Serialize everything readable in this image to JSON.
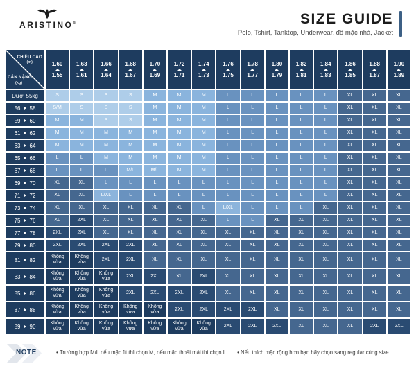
{
  "theme": {
    "navy": "#1e3c5f",
    "title": "#1c1c1c",
    "subtitle": "#4a4a4a",
    "note_text": "#3c3c3c",
    "accent_bar": "#3d6085",
    "chevron1": "#e2e6ec",
    "chevron2": "#eceff4",
    "cell_text": "#ffffff",
    "logo_color": "#1c1c1c"
  },
  "brand": {
    "name": "ARISTINO",
    "reg": "®"
  },
  "header": {
    "title": "SIZE GUIDE",
    "subtitle": "Polo, Tshirt, Tanktop, Underwear, đồ mặc nhà, Jacket"
  },
  "table": {
    "corner": {
      "top_label": "CHIỀU CAO",
      "top_unit": "(m)",
      "bottom_label": "CÂN NẶNG",
      "bottom_unit": "(kg)"
    },
    "height_columns": [
      {
        "max": "1.60",
        "min": "1.55"
      },
      {
        "max": "1.63",
        "min": "1.61"
      },
      {
        "max": "1.66",
        "min": "1.64"
      },
      {
        "max": "1.68",
        "min": "1.67"
      },
      {
        "max": "1.70",
        "min": "1.69"
      },
      {
        "max": "1.72",
        "min": "1.71"
      },
      {
        "max": "1.74",
        "min": "1.73"
      },
      {
        "max": "1.76",
        "min": "1.75"
      },
      {
        "max": "1.78",
        "min": "1.77"
      },
      {
        "max": "1.80",
        "min": "1.79"
      },
      {
        "max": "1.82",
        "min": "1.81"
      },
      {
        "max": "1.84",
        "min": "1.83"
      },
      {
        "max": "1.86",
        "min": "1.85"
      },
      {
        "max": "1.88",
        "min": "1.87"
      },
      {
        "max": "1.90",
        "min": "1.89"
      }
    ],
    "no_fit_label": "Không vừa",
    "size_colors": {
      "S": "#aecde9",
      "S/M": "#aecde9",
      "M": "#8ab4dd",
      "M/L": "#8ab4dd",
      "L": "#6992bf",
      "L/XL": "#8cb4dc",
      "XL": "#45678f",
      "2XL": "#2a4b72",
      "Không vừa": "#1e3c5f"
    },
    "rows": [
      {
        "label": "Dưới 55kg",
        "sizes": [
          "S",
          "S",
          "S",
          "S",
          "M",
          "M",
          "M",
          "L",
          "L",
          "L",
          "L",
          "L",
          "XL",
          "XL",
          "XL"
        ]
      },
      {
        "from": "56",
        "to": "58",
        "sizes": [
          "S/M",
          "S",
          "S",
          "S",
          "M",
          "M",
          "M",
          "L",
          "L",
          "L",
          "L",
          "L",
          "XL",
          "XL",
          "XL"
        ]
      },
      {
        "from": "59",
        "to": "60",
        "sizes": [
          "M",
          "M",
          "S",
          "S",
          "M",
          "M",
          "M",
          "L",
          "L",
          "L",
          "L",
          "L",
          "XL",
          "XL",
          "XL"
        ]
      },
      {
        "from": "61",
        "to": "62",
        "sizes": [
          "M",
          "M",
          "M",
          "M",
          "M",
          "M",
          "M",
          "L",
          "L",
          "L",
          "L",
          "L",
          "XL",
          "XL",
          "XL"
        ]
      },
      {
        "from": "63",
        "to": "64",
        "sizes": [
          "M",
          "M",
          "M",
          "M",
          "M",
          "M",
          "M",
          "L",
          "L",
          "L",
          "L",
          "L",
          "XL",
          "XL",
          "XL"
        ]
      },
      {
        "from": "65",
        "to": "66",
        "sizes": [
          "L",
          "L",
          "M",
          "M",
          "M",
          "M",
          "M",
          "L",
          "L",
          "L",
          "L",
          "L",
          "XL",
          "XL",
          "XL"
        ]
      },
      {
        "from": "67",
        "to": "68",
        "sizes": [
          "L",
          "L",
          "L",
          "M/L",
          "M/L",
          "M",
          "M",
          "L",
          "L",
          "L",
          "L",
          "L",
          "XL",
          "XL",
          "XL"
        ]
      },
      {
        "from": "69",
        "to": "70",
        "sizes": [
          "XL",
          "XL",
          "L",
          "L",
          "L",
          "L",
          "L",
          "L",
          "L",
          "L",
          "L",
          "L",
          "XL",
          "XL",
          "XL"
        ]
      },
      {
        "from": "71",
        "to": "72",
        "sizes": [
          "XL",
          "XL",
          "L/XL",
          "L",
          "L",
          "L",
          "L",
          "L",
          "L",
          "L",
          "L",
          "L",
          "XL",
          "XL",
          "XL"
        ]
      },
      {
        "from": "73",
        "to": "74",
        "sizes": [
          "XL",
          "XL",
          "XL",
          "XL",
          "XL",
          "XL",
          "L",
          "L/XL",
          "L",
          "L",
          "L",
          "XL",
          "XL",
          "XL",
          "XL"
        ]
      },
      {
        "from": "75",
        "to": "76",
        "sizes": [
          "XL",
          "2XL",
          "XL",
          "XL",
          "XL",
          "XL",
          "XL",
          "L",
          "L",
          "XL",
          "XL",
          "XL",
          "XL",
          "XL",
          "XL"
        ]
      },
      {
        "from": "77",
        "to": "78",
        "sizes": [
          "2XL",
          "2XL",
          "XL",
          "XL",
          "XL",
          "XL",
          "XL",
          "XL",
          "XL",
          "XL",
          "XL",
          "XL",
          "XL",
          "XL",
          "XL"
        ]
      },
      {
        "from": "79",
        "to": "80",
        "sizes": [
          "2XL",
          "2XL",
          "2XL",
          "2XL",
          "XL",
          "XL",
          "XL",
          "XL",
          "XL",
          "XL",
          "XL",
          "XL",
          "XL",
          "XL",
          "XL"
        ]
      },
      {
        "from": "81",
        "to": "82",
        "tall": true,
        "sizes": [
          "Không vừa",
          "Không vừa",
          "2XL",
          "2XL",
          "XL",
          "XL",
          "XL",
          "XL",
          "XL",
          "XL",
          "XL",
          "XL",
          "XL",
          "XL",
          "XL"
        ]
      },
      {
        "from": "83",
        "to": "84",
        "tall": true,
        "sizes": [
          "Không vừa",
          "Không vừa",
          "Không vừa",
          "2XL",
          "2XL",
          "XL",
          "2XL",
          "XL",
          "XL",
          "XL",
          "XL",
          "XL",
          "XL",
          "XL",
          "XL"
        ]
      },
      {
        "from": "85",
        "to": "86",
        "tall": true,
        "sizes": [
          "Không vừa",
          "Không vừa",
          "Không vừa",
          "2XL",
          "2XL",
          "2XL",
          "2XL",
          "XL",
          "XL",
          "XL",
          "XL",
          "XL",
          "XL",
          "XL",
          "XL"
        ]
      },
      {
        "from": "87",
        "to": "88",
        "tall": true,
        "sizes": [
          "Không vừa",
          "Không vừa",
          "Không vừa",
          "Không vừa",
          "Không vừa",
          "2XL",
          "2XL",
          "2XL",
          "2XL",
          "XL",
          "XL",
          "XL",
          "XL",
          "XL",
          "XL"
        ]
      },
      {
        "from": "89",
        "to": "90",
        "tall": true,
        "sizes": [
          "Không vừa",
          "Không vừa",
          "Không vừa",
          "Không vừa",
          "Không vừa",
          "Không vừa",
          "Không vừa",
          "2XL",
          "2XL",
          "2XL",
          "XL",
          "XL",
          "XL",
          "2XL",
          "2XL"
        ]
      }
    ]
  },
  "note": {
    "label": "NOTE",
    "items": [
      "Trường hợp M/L nếu mặc fit thì chọn M, nếu mặc thoải mái thì chọn L",
      "Nếu thích mặc rộng hơn bạn hãy chọn sang regular cùng size."
    ]
  }
}
